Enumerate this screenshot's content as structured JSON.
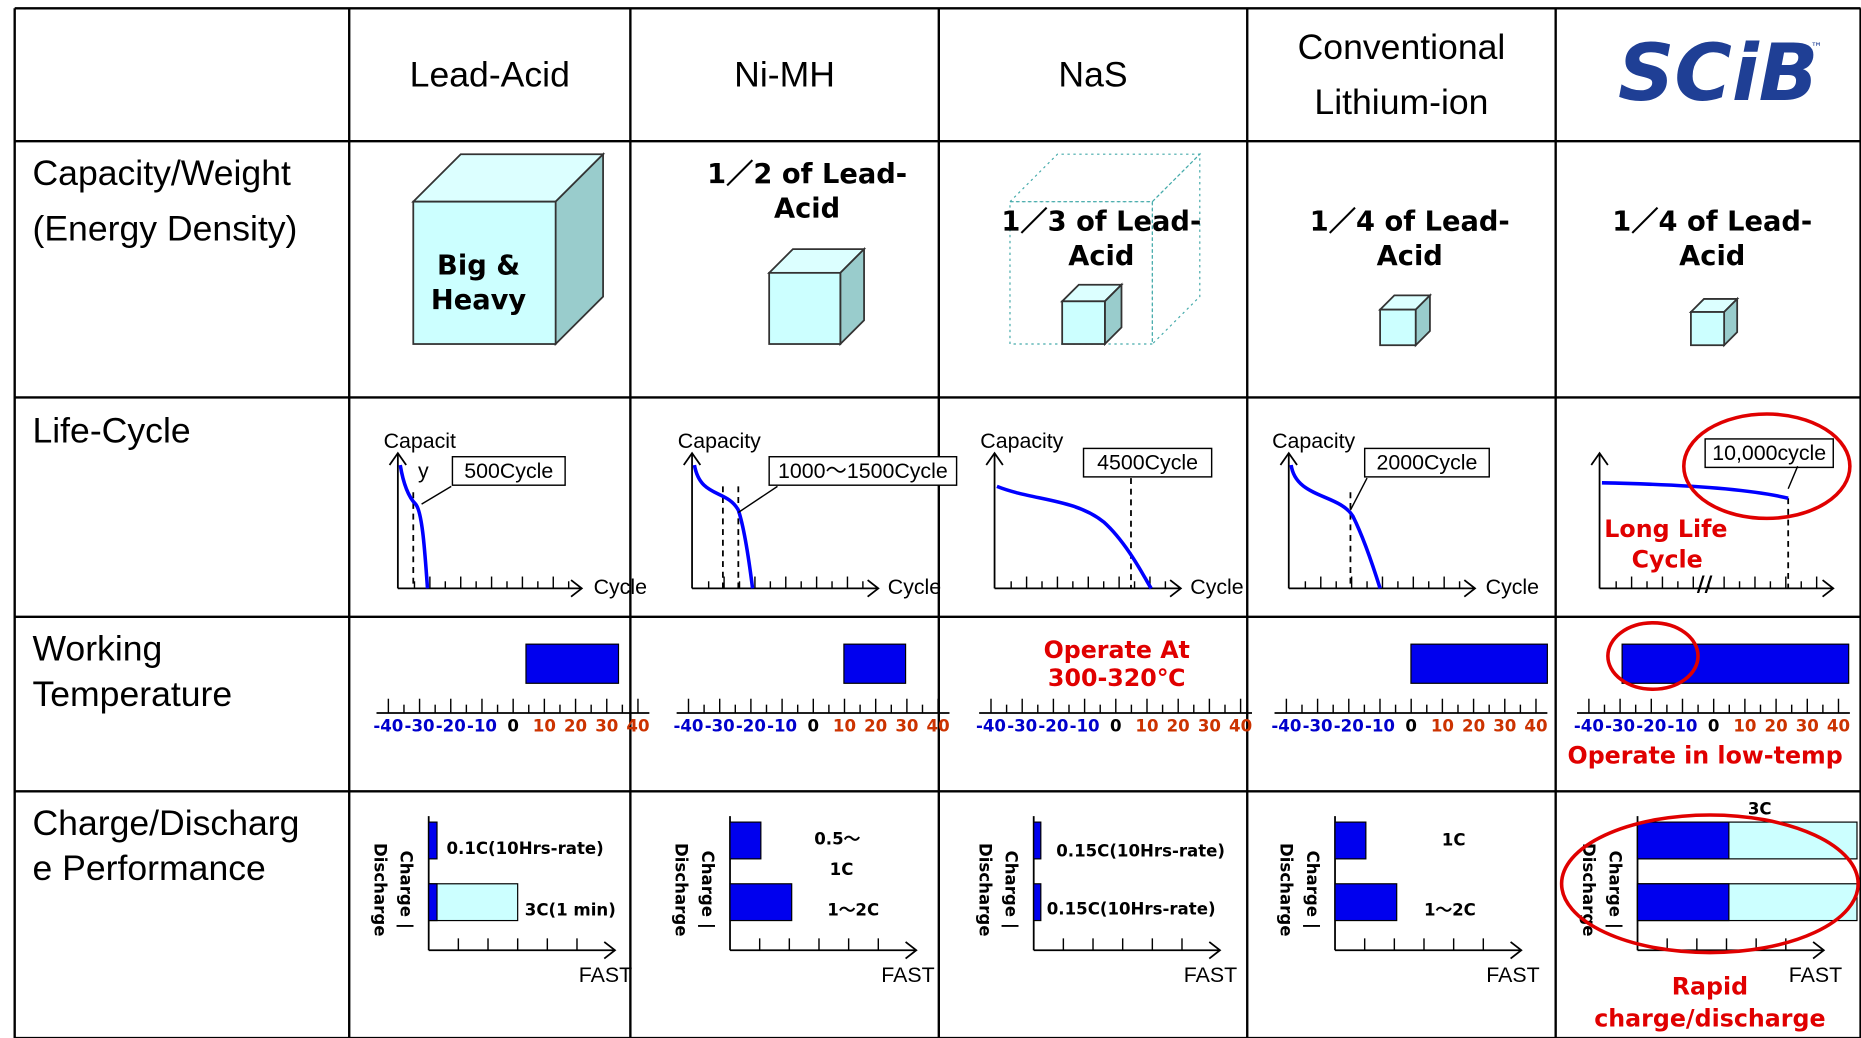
{
  "header": {
    "columns": [
      "Lead-Acid",
      "Ni-MH",
      "NaS",
      [
        "Conventional",
        "Lithium-ion"
      ],
      "SCiB"
    ],
    "trademark": "™"
  },
  "rows": [
    {
      "label": [
        "Capacity/Weight",
        "(Energy Density)"
      ],
      "cells": [
        [
          "Big &",
          "Heavy"
        ],
        [
          "1／2 of Lead-",
          "Acid"
        ],
        [
          "1／3 of Lead-",
          "Acid"
        ],
        [
          "1／4 of Lead-",
          "Acid"
        ],
        [
          "1／4 of Lead-",
          "Acid"
        ]
      ]
    },
    {
      "label": [
        "Life-Cycle"
      ],
      "cells": [
        {
          "y_label": [
            "Capacit",
            "y"
          ],
          "x_label": "Cycle",
          "callout": "500Cycle"
        },
        {
          "y_label": [
            "Capacity"
          ],
          "x_label": "Cycle",
          "callout": "1000～1500Cycle"
        },
        {
          "y_label": [
            "Capacity"
          ],
          "x_label": "Cycle",
          "callout": "4500Cycle"
        },
        {
          "y_label": [
            "Capacity"
          ],
          "x_label": "Cycle",
          "callout": "2000Cycle"
        },
        {
          "callout": "10,000cycle",
          "note": [
            "Long Life",
            "Cycle"
          ]
        }
      ]
    },
    {
      "label": [
        "Working",
        "Temperature"
      ],
      "ticks": [
        -40,
        -30,
        -20,
        -10,
        0,
        10,
        20,
        30,
        40
      ],
      "notes": [
        null,
        null,
        [
          "Operate At",
          "300-320℃"
        ],
        null,
        [
          "Operate in  low-temp"
        ]
      ]
    },
    {
      "label": [
        "Charge/Discharg",
        "e Performance"
      ],
      "y_label": [
        "Charge |",
        "Discharge"
      ],
      "x_label": "FAST",
      "cells": [
        {
          "charge": [
            "0.1C(10Hrs-rate)"
          ],
          "discharge": [
            "3C(1 min)"
          ]
        },
        {
          "charge": [
            "0.5～",
            "1C"
          ],
          "discharge": [
            "1～2C"
          ]
        },
        {
          "charge": [
            "0.15C(10Hrs-rate)"
          ],
          "discharge": [
            "0.15C(10Hrs-rate)"
          ]
        },
        {
          "charge": [
            "1C"
          ],
          "discharge": [
            "1～2C"
          ]
        },
        {
          "rate": "3C",
          "note": [
            "Rapid",
            "charge/discharge"
          ]
        }
      ]
    }
  ]
}
